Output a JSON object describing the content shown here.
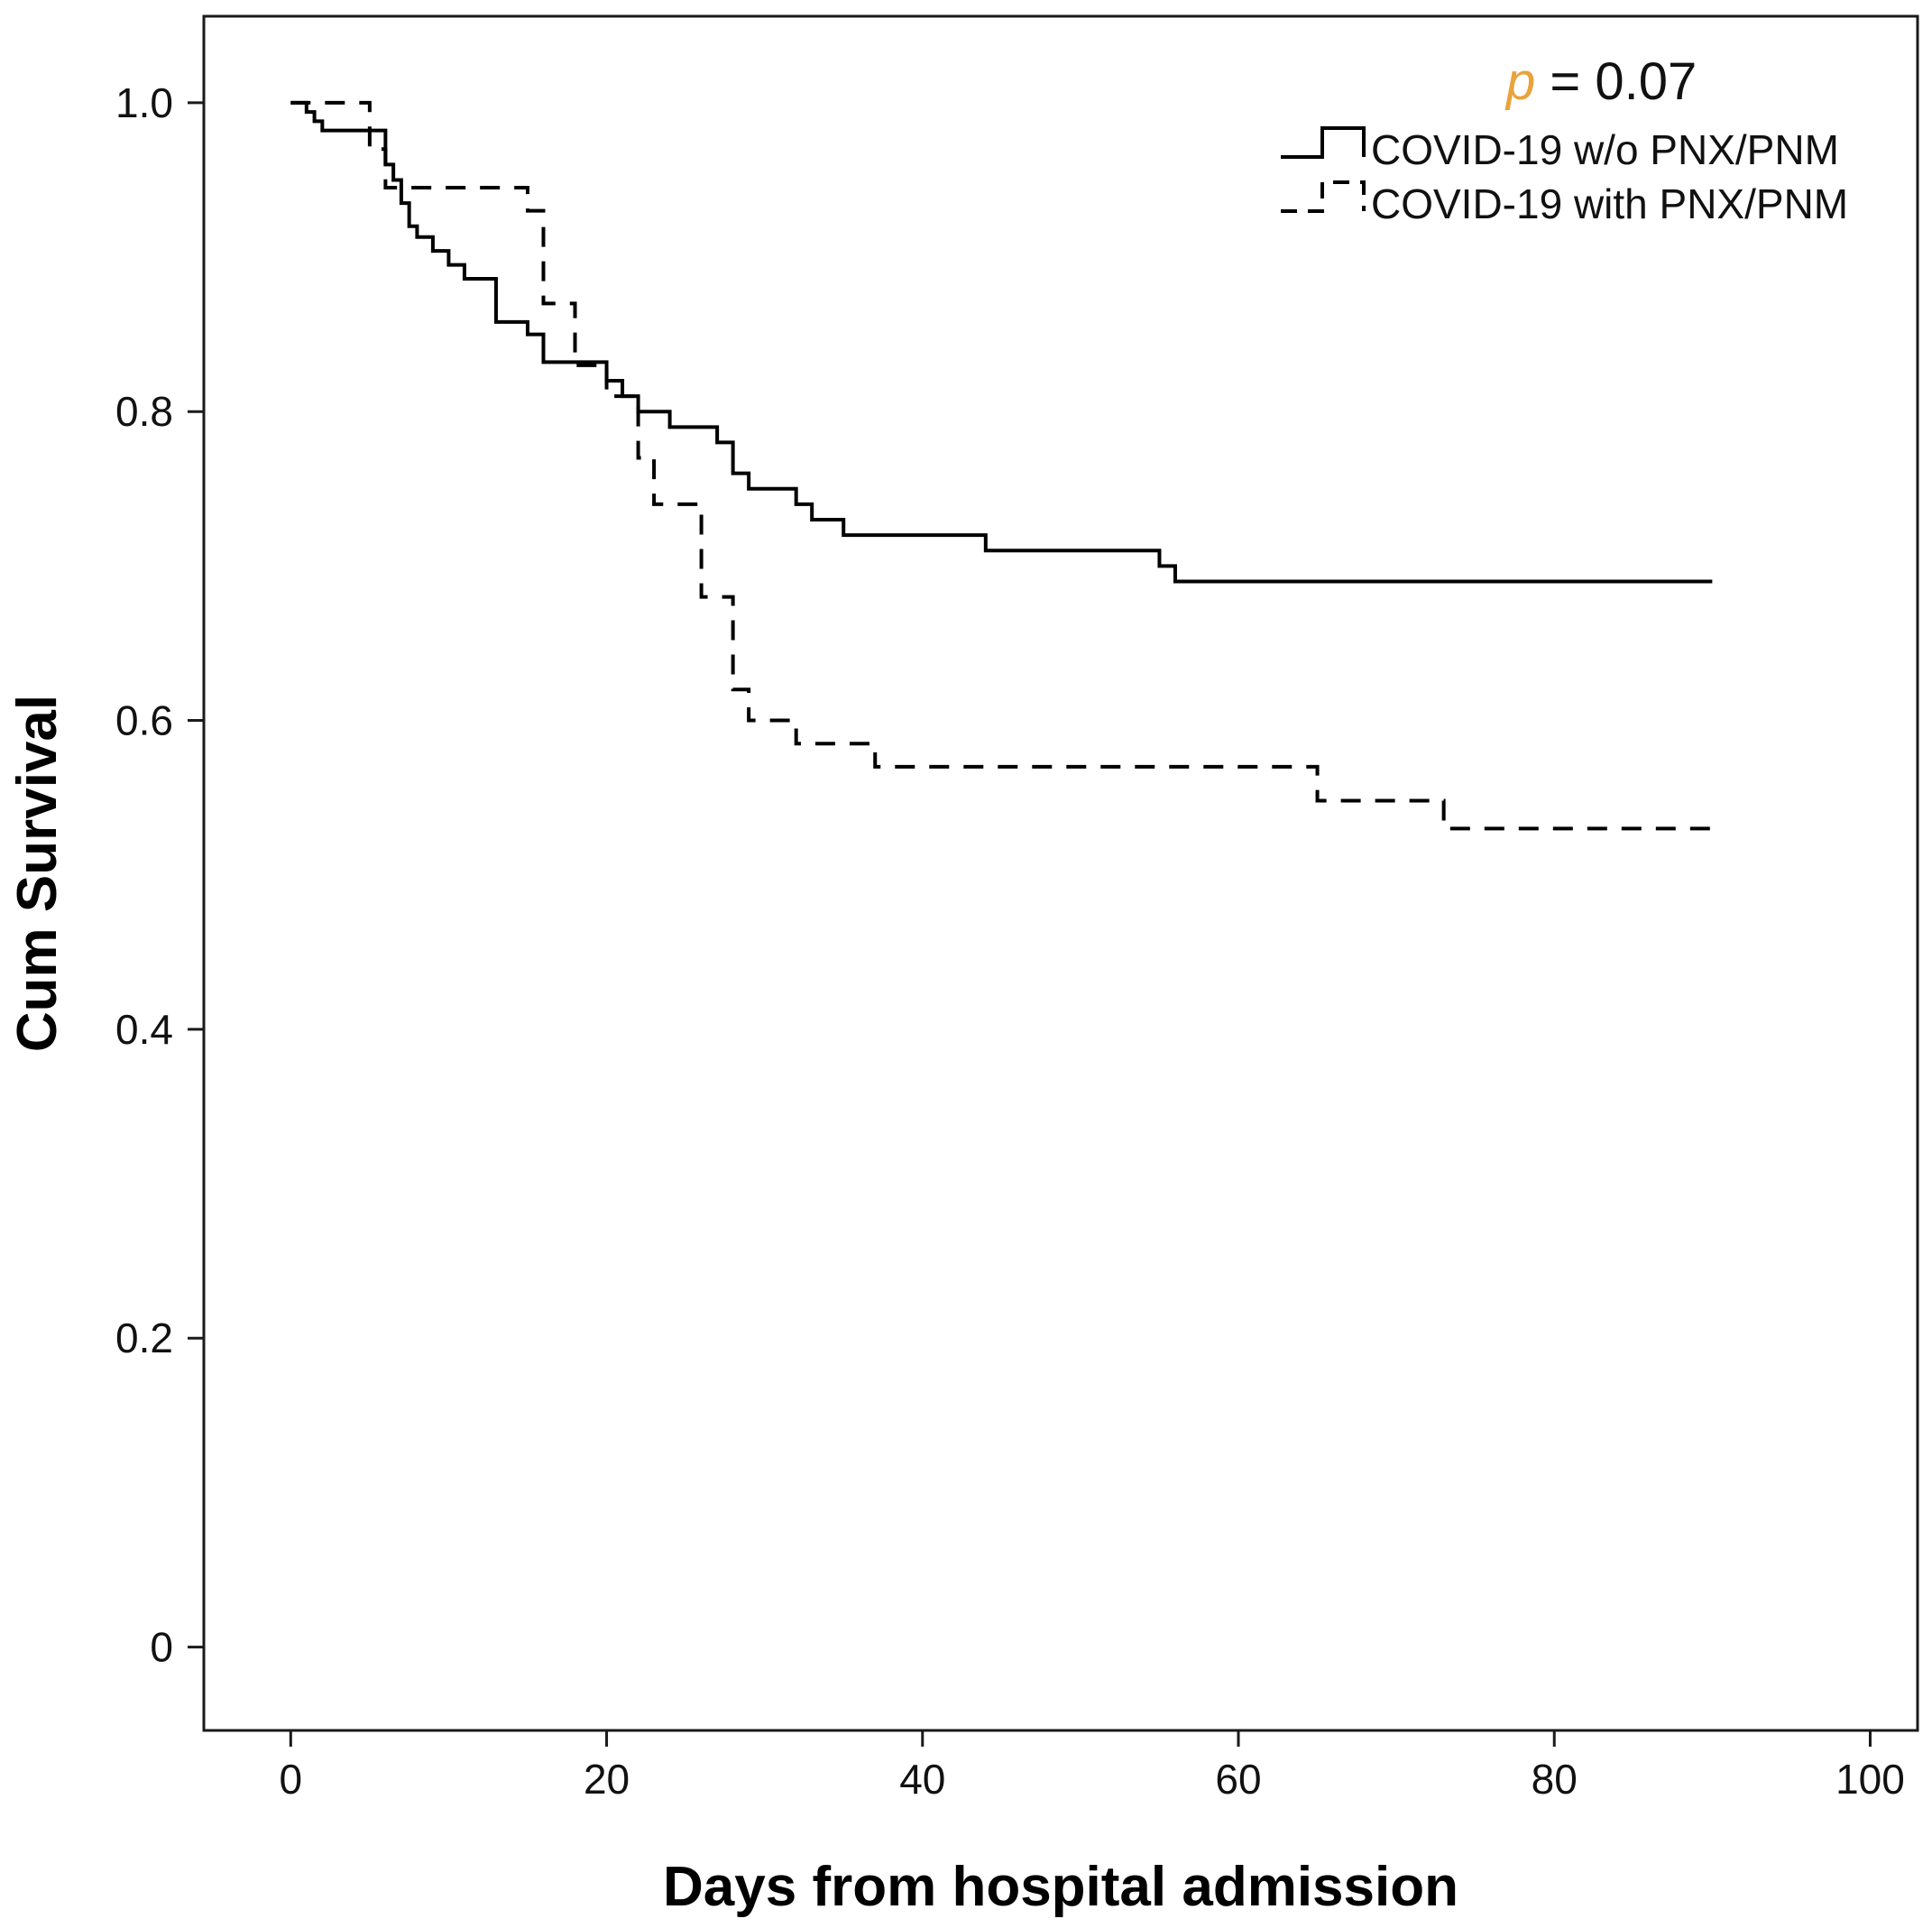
{
  "chart_data": {
    "type": "line",
    "subtype": "kaplan-meier step",
    "title": "",
    "xlabel": "Days from hospital admission",
    "ylabel": "Cum Survival",
    "xlim": [
      -5.5,
      103
    ],
    "ylim": [
      -0.054,
      1.056
    ],
    "x_ticks": [
      0,
      20,
      40,
      60,
      80,
      100
    ],
    "y_ticks": [
      0,
      0.2,
      0.4,
      0.6,
      0.8,
      1.0
    ],
    "x_tick_labels": [
      "0",
      "20",
      "40",
      "60",
      "80",
      "100"
    ],
    "y_tick_labels": [
      "0",
      "0.2",
      "0.4",
      "0.6",
      "0.8",
      "1.0"
    ],
    "grid": false,
    "annotation": {
      "p_symbol": "p",
      "p_rest": " = 0.07",
      "color": "#e8a33c"
    },
    "legend_position": "top-right",
    "series": [
      {
        "name": "COVID-19 w/o PNX/PNM",
        "style": "solid",
        "color": "#000000",
        "x": [
          0,
          1,
          1.5,
          2,
          6,
          6.5,
          7,
          7.5,
          8,
          9,
          10,
          11,
          13,
          15,
          16,
          20,
          21,
          22,
          24,
          27,
          28,
          29,
          32,
          33,
          35,
          44,
          55,
          56,
          90
        ],
        "y": [
          1.0,
          0.994,
          0.988,
          0.982,
          0.96,
          0.95,
          0.935,
          0.92,
          0.913,
          0.904,
          0.895,
          0.886,
          0.858,
          0.85,
          0.832,
          0.82,
          0.81,
          0.8,
          0.79,
          0.78,
          0.76,
          0.75,
          0.74,
          0.73,
          0.72,
          0.71,
          0.7,
          0.69,
          0.69
        ]
      },
      {
        "name": "COVID-19 with PNX/PNM",
        "style": "dashed",
        "color": "#000000",
        "x": [
          0,
          5,
          6,
          15,
          16,
          18,
          20,
          22,
          23,
          26,
          28,
          29,
          32,
          37,
          65,
          73,
          90
        ],
        "y": [
          1.0,
          0.97,
          0.945,
          0.93,
          0.87,
          0.83,
          0.81,
          0.77,
          0.74,
          0.68,
          0.62,
          0.6,
          0.585,
          0.57,
          0.548,
          0.53,
          0.53
        ]
      }
    ]
  }
}
